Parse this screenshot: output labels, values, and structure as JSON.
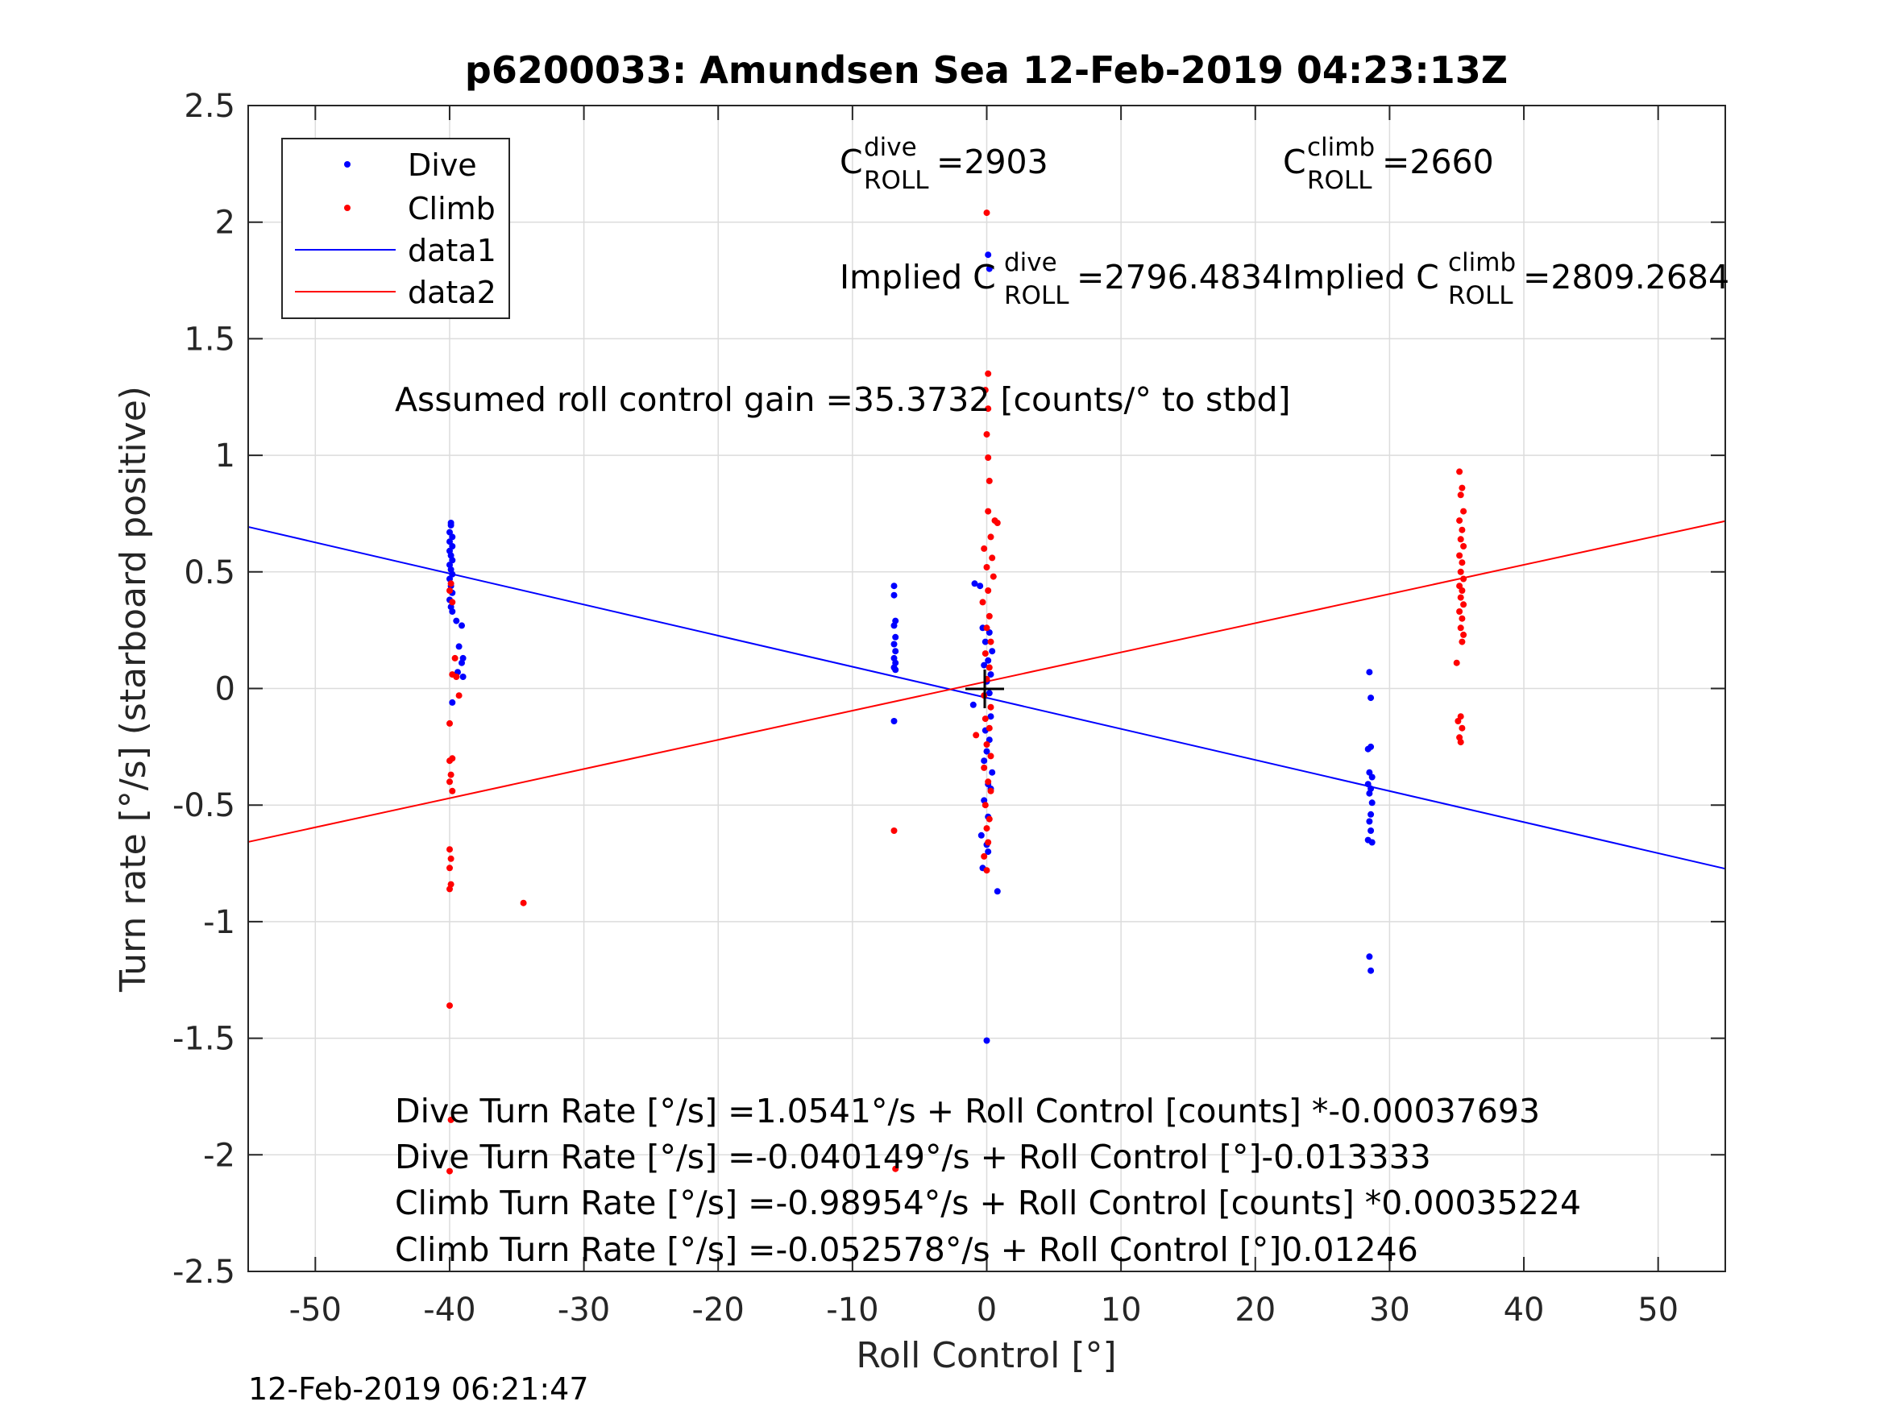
{
  "chart_data": {
    "type": "scatter",
    "title": "p6200033: Amundsen Sea 12-Feb-2019 04:23:13Z",
    "xlabel": "Roll Control [°]",
    "ylabel": "Turn rate [°/s] (starboard positive)",
    "xlim": [
      -55,
      55
    ],
    "ylim": [
      -2.5,
      2.5
    ],
    "xticks": [
      -50,
      -40,
      -30,
      -20,
      -10,
      0,
      10,
      20,
      30,
      40,
      50
    ],
    "yticks": [
      -2.5,
      -2,
      -1.5,
      -1,
      -0.5,
      0,
      0.5,
      1,
      1.5,
      2,
      2.5
    ],
    "xtick_labels": [
      "-50",
      "-40",
      "-30",
      "-20",
      "-10",
      "0",
      "10",
      "20",
      "30",
      "40",
      "50"
    ],
    "ytick_labels": [
      "-2.5",
      "-2",
      "-1.5",
      "-1",
      "-0.5",
      "0",
      "0.5",
      "1",
      "1.5",
      "2",
      "2.5"
    ],
    "grid": true,
    "legend_position": "top-left",
    "series": [
      {
        "name": "Dive",
        "kind": "points",
        "color": "#0000ff",
        "points": [
          [
            -39.9,
            0.71
          ],
          [
            -39.9,
            0.7
          ],
          [
            -40.0,
            0.67
          ],
          [
            -39.8,
            0.65
          ],
          [
            -40.0,
            0.63
          ],
          [
            -39.8,
            0.61
          ],
          [
            -40.0,
            0.59
          ],
          [
            -39.9,
            0.57
          ],
          [
            -39.8,
            0.55
          ],
          [
            -40.0,
            0.53
          ],
          [
            -39.9,
            0.51
          ],
          [
            -39.8,
            0.49
          ],
          [
            -40.0,
            0.47
          ],
          [
            -39.9,
            0.44
          ],
          [
            -39.8,
            0.41
          ],
          [
            -40.0,
            0.38
          ],
          [
            -39.9,
            0.35
          ],
          [
            -39.8,
            0.33
          ],
          [
            -39.5,
            0.29
          ],
          [
            -39.1,
            0.27
          ],
          [
            -39.3,
            0.18
          ],
          [
            -39.0,
            0.13
          ],
          [
            -39.1,
            0.11
          ],
          [
            -39.4,
            0.07
          ],
          [
            -39.0,
            0.05
          ],
          [
            -39.8,
            -0.06
          ],
          [
            -6.9,
            0.44
          ],
          [
            -6.9,
            0.4
          ],
          [
            -6.8,
            0.29
          ],
          [
            -6.9,
            0.27
          ],
          [
            -6.8,
            0.22
          ],
          [
            -6.9,
            0.19
          ],
          [
            -6.8,
            0.16
          ],
          [
            -6.9,
            0.13
          ],
          [
            -6.8,
            0.11
          ],
          [
            -6.9,
            0.09
          ],
          [
            -6.8,
            0.08
          ],
          [
            -6.9,
            -0.14
          ],
          [
            -0.9,
            0.45
          ],
          [
            -0.5,
            0.44
          ],
          [
            -0.3,
            0.26
          ],
          [
            0.2,
            0.24
          ],
          [
            -0.1,
            0.2
          ],
          [
            0.4,
            0.16
          ],
          [
            0.1,
            0.12
          ],
          [
            -0.2,
            0.1
          ],
          [
            0.3,
            0.06
          ],
          [
            0.0,
            0.03
          ],
          [
            0.2,
            -0.02
          ],
          [
            -1.0,
            -0.07
          ],
          [
            0.3,
            -0.12
          ],
          [
            -0.1,
            -0.18
          ],
          [
            0.2,
            -0.22
          ],
          [
            0.0,
            -0.27
          ],
          [
            -0.2,
            -0.31
          ],
          [
            0.4,
            -0.36
          ],
          [
            0.1,
            -0.41
          ],
          [
            0.3,
            -0.43
          ],
          [
            -0.2,
            -0.48
          ],
          [
            0.1,
            -0.55
          ],
          [
            -0.4,
            -0.63
          ],
          [
            0.0,
            -0.67
          ],
          [
            0.1,
            -0.7
          ],
          [
            -0.3,
            -0.77
          ],
          [
            0.8,
            -0.87
          ],
          [
            0.0,
            -1.51
          ],
          [
            0.1,
            1.86
          ],
          [
            0.2,
            1.8
          ],
          [
            28.5,
            0.07
          ],
          [
            28.6,
            -0.04
          ],
          [
            28.4,
            -0.26
          ],
          [
            28.6,
            -0.25
          ],
          [
            28.5,
            -0.36
          ],
          [
            28.7,
            -0.38
          ],
          [
            28.4,
            -0.41
          ],
          [
            28.6,
            -0.43
          ],
          [
            28.5,
            -0.45
          ],
          [
            28.7,
            -0.49
          ],
          [
            28.6,
            -0.54
          ],
          [
            28.5,
            -0.57
          ],
          [
            28.6,
            -0.61
          ],
          [
            28.4,
            -0.65
          ],
          [
            28.7,
            -0.66
          ],
          [
            28.5,
            -1.15
          ],
          [
            28.6,
            -1.21
          ]
        ]
      },
      {
        "name": "Climb",
        "kind": "points",
        "color": "#ff0000",
        "points": [
          [
            -39.9,
            0.45
          ],
          [
            -40.0,
            0.42
          ],
          [
            -39.8,
            0.37
          ],
          [
            -39.6,
            0.13
          ],
          [
            -39.8,
            0.06
          ],
          [
            -39.5,
            0.05
          ],
          [
            -39.3,
            -0.03
          ],
          [
            -40.0,
            -0.15
          ],
          [
            -39.8,
            -0.3
          ],
          [
            -40.0,
            -0.31
          ],
          [
            -39.9,
            -0.37
          ],
          [
            -40.0,
            -0.4
          ],
          [
            -39.8,
            -0.44
          ],
          [
            -40.0,
            -0.69
          ],
          [
            -39.9,
            -0.73
          ],
          [
            -40.0,
            -0.77
          ],
          [
            -39.9,
            -0.84
          ],
          [
            -40.0,
            -0.86
          ],
          [
            -34.5,
            -0.92
          ],
          [
            -40.0,
            -1.36
          ],
          [
            -39.9,
            -1.85
          ],
          [
            -40.0,
            -2.07
          ],
          [
            -6.9,
            -0.61
          ],
          [
            -6.8,
            -2.06
          ],
          [
            0.0,
            2.04
          ],
          [
            0.1,
            1.35
          ],
          [
            -0.1,
            1.28
          ],
          [
            0.1,
            1.2
          ],
          [
            0.0,
            1.09
          ],
          [
            0.1,
            0.99
          ],
          [
            0.2,
            0.89
          ],
          [
            0.1,
            0.76
          ],
          [
            0.6,
            0.72
          ],
          [
            0.8,
            0.71
          ],
          [
            0.3,
            0.65
          ],
          [
            -0.2,
            0.6
          ],
          [
            0.4,
            0.56
          ],
          [
            0.0,
            0.52
          ],
          [
            0.5,
            0.48
          ],
          [
            0.1,
            0.42
          ],
          [
            -0.3,
            0.37
          ],
          [
            0.2,
            0.31
          ],
          [
            0.0,
            0.26
          ],
          [
            0.3,
            0.2
          ],
          [
            -0.1,
            0.15
          ],
          [
            0.2,
            0.09
          ],
          [
            0.0,
            0.04
          ],
          [
            -0.2,
            -0.03
          ],
          [
            0.3,
            -0.08
          ],
          [
            -0.1,
            -0.13
          ],
          [
            0.2,
            -0.17
          ],
          [
            -0.8,
            -0.2
          ],
          [
            0.0,
            -0.24
          ],
          [
            0.3,
            -0.29
          ],
          [
            -0.2,
            -0.34
          ],
          [
            0.1,
            -0.4
          ],
          [
            0.3,
            -0.44
          ],
          [
            -0.1,
            -0.5
          ],
          [
            0.2,
            -0.56
          ],
          [
            0.0,
            -0.6
          ],
          [
            0.1,
            -0.66
          ],
          [
            -0.2,
            -0.72
          ],
          [
            0.0,
            -0.78
          ],
          [
            35.2,
            0.93
          ],
          [
            35.4,
            0.86
          ],
          [
            35.3,
            0.83
          ],
          [
            35.5,
            0.76
          ],
          [
            35.2,
            0.72
          ],
          [
            35.4,
            0.68
          ],
          [
            35.3,
            0.64
          ],
          [
            35.5,
            0.61
          ],
          [
            35.2,
            0.57
          ],
          [
            35.4,
            0.54
          ],
          [
            35.3,
            0.5
          ],
          [
            35.5,
            0.47
          ],
          [
            35.2,
            0.44
          ],
          [
            35.4,
            0.42
          ],
          [
            35.3,
            0.39
          ],
          [
            35.5,
            0.36
          ],
          [
            35.2,
            0.33
          ],
          [
            35.4,
            0.3
          ],
          [
            35.3,
            0.26
          ],
          [
            35.5,
            0.23
          ],
          [
            35.4,
            0.2
          ],
          [
            35.0,
            0.11
          ],
          [
            35.3,
            -0.12
          ],
          [
            35.1,
            -0.14
          ],
          [
            35.4,
            -0.17
          ],
          [
            35.2,
            -0.21
          ],
          [
            35.3,
            -0.23
          ]
        ]
      },
      {
        "name": "data1",
        "kind": "line",
        "color": "#0000ff",
        "points": [
          [
            -55,
            0.693
          ],
          [
            55,
            -0.773
          ]
        ]
      },
      {
        "name": "data2",
        "kind": "line",
        "color": "#ff0000",
        "points": [
          [
            -55,
            -0.658
          ],
          [
            55,
            0.718
          ]
        ]
      }
    ],
    "center_marker": {
      "x": 0,
      "y": 0,
      "symbol": "+"
    },
    "annotations": {
      "c_dive_main": "C",
      "c_dive_sup": "dive",
      "c_dive_sub": "ROLL",
      "c_dive_value": " =2903",
      "c_climb_main": "C",
      "c_climb_sup": "climb",
      "c_climb_sub": "ROLL",
      "c_climb_value": " =2660",
      "implied_dive_prefix": "Implied C",
      "implied_dive_sup": "dive",
      "implied_dive_sub": "ROLL",
      "implied_dive_value": " =2796.4834",
      "implied_climb_prefix": "Implied C",
      "implied_climb_sup": "climb",
      "implied_climb_sub": "ROLL",
      "implied_climb_value": " =2809.2684",
      "gain": "Assumed roll control gain =35.3732 [counts/° to stbd]",
      "fit_lines": [
        "Dive Turn Rate [°/s] =1.0541°/s + Roll Control [counts] *-0.00037693",
        "Dive Turn Rate [°/s] =-0.040149°/s + Roll Control [°]-0.013333",
        "Climb Turn Rate [°/s] =-0.98954°/s + Roll Control [counts] *0.00035224",
        "Climb Turn Rate [°/s] =-0.052578°/s + Roll Control [°]0.01246"
      ]
    },
    "timestamp": "12-Feb-2019 06:21:47"
  }
}
